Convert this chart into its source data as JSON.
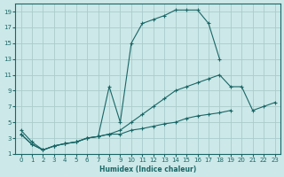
{
  "xlabel": "Humidex (Indice chaleur)",
  "bg_color": "#cce8e8",
  "grid_color": "#aacccc",
  "line_color": "#1a6666",
  "xlim": [
    -0.5,
    23.5
  ],
  "ylim": [
    1,
    20
  ],
  "xticks": [
    0,
    1,
    2,
    3,
    4,
    5,
    6,
    7,
    8,
    9,
    10,
    11,
    12,
    13,
    14,
    15,
    16,
    17,
    18,
    19,
    20,
    21,
    22,
    23
  ],
  "yticks": [
    1,
    3,
    5,
    7,
    9,
    11,
    13,
    15,
    17,
    19
  ],
  "series": [
    {
      "x": [
        0,
        1,
        2,
        3,
        4,
        5,
        6,
        7,
        8,
        9,
        10,
        11,
        12,
        13,
        14,
        15,
        16,
        17,
        18,
        19
      ],
      "y": [
        4,
        2.5,
        1.5,
        2,
        2.3,
        2.5,
        3,
        3.2,
        9.5,
        5,
        15,
        17.5,
        18,
        18.5,
        19.2,
        19.2,
        19.2,
        17.5,
        13,
        null
      ]
    },
    {
      "x": [
        0,
        1,
        2,
        3,
        4,
        5,
        6,
        7,
        8,
        9,
        10,
        11,
        12,
        13,
        14,
        15,
        16,
        17,
        18,
        19,
        20,
        21,
        22,
        23
      ],
      "y": [
        3.5,
        2.2,
        1.5,
        2,
        2.3,
        2.5,
        3,
        3.2,
        3.5,
        4,
        5,
        6,
        7,
        8,
        9,
        9.5,
        10,
        10.5,
        11,
        9.5,
        9.5,
        6.5,
        7,
        7.5
      ]
    },
    {
      "x": [
        0,
        1,
        2,
        3,
        4,
        5,
        6,
        7,
        8,
        9,
        10,
        11,
        12,
        13,
        14,
        15,
        16,
        17,
        18,
        19,
        20,
        21,
        22,
        23
      ],
      "y": [
        3.5,
        2.2,
        1.5,
        2,
        2.3,
        2.5,
        3,
        3.2,
        3.5,
        3.5,
        4,
        4.2,
        4.5,
        4.8,
        5,
        5.5,
        5.8,
        6,
        6.2,
        6.5,
        null,
        null,
        null,
        null
      ]
    }
  ]
}
